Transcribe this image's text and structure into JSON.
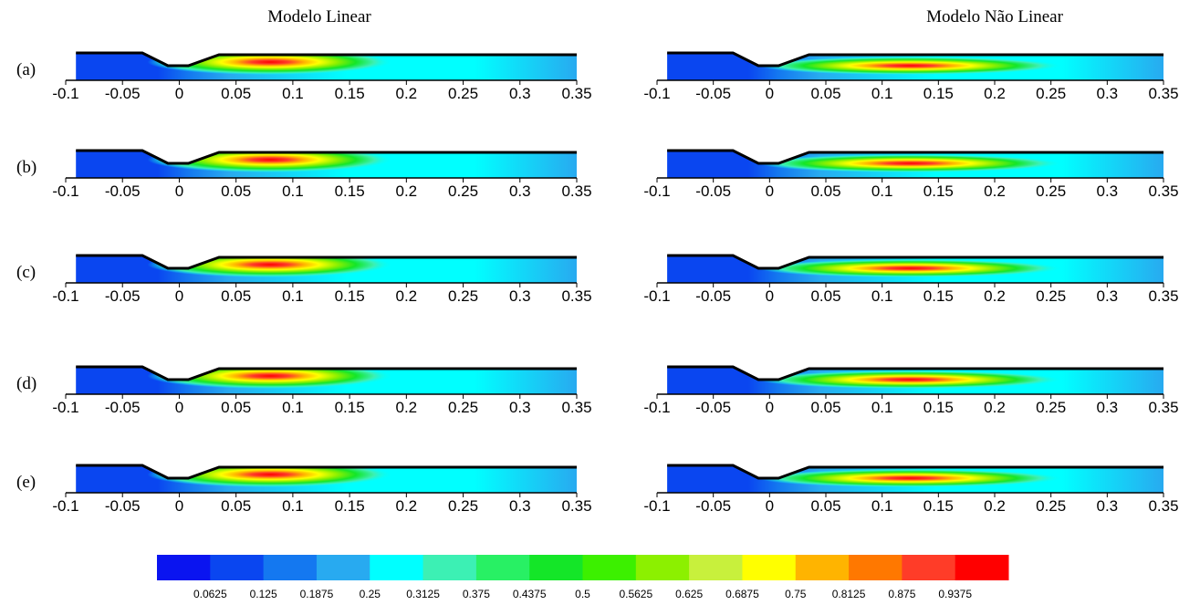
{
  "columns": [
    "Modelo Linear",
    "Modelo Não Linear"
  ],
  "rows": [
    "(a)",
    "(b)",
    "(c)",
    "(d)",
    "(e)"
  ],
  "x_axis": {
    "ticks": [
      -0.1,
      -0.05,
      0,
      0.05,
      0.1,
      0.15,
      0.2,
      0.25,
      0.3,
      0.35
    ]
  },
  "colorbar": {
    "levels": [
      0.0625,
      0.125,
      0.1875,
      0.25,
      0.3125,
      0.375,
      0.4375,
      0.5,
      0.5625,
      0.625,
      0.6875,
      0.75,
      0.8125,
      0.875,
      0.9375
    ],
    "colors": [
      "#0a14f0",
      "#0a46f0",
      "#1478f0",
      "#28aaf0",
      "#00ffff",
      "#3cf0b4",
      "#28f064",
      "#14e628",
      "#3cf000",
      "#8cf000",
      "#c8f03c",
      "#ffff00",
      "#ffb400",
      "#ff7800",
      "#ff3c28",
      "#ff0000"
    ]
  }
}
